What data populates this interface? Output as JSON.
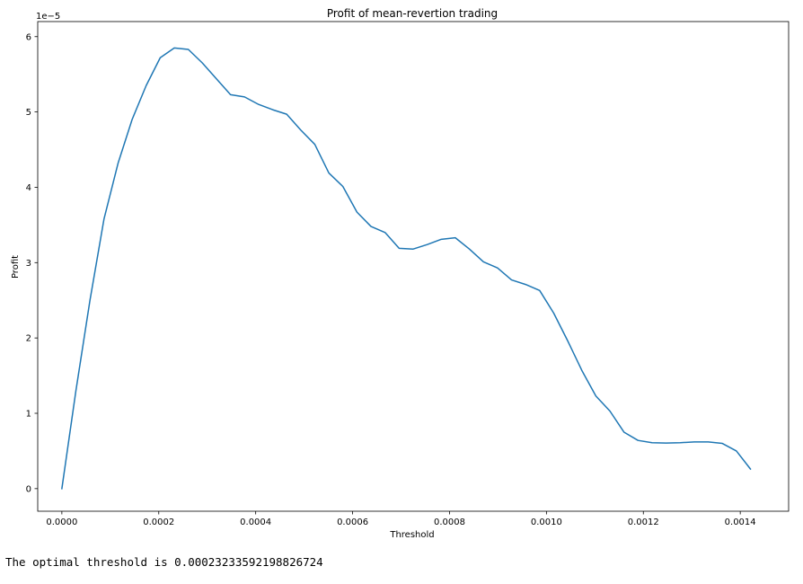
{
  "chart_data": {
    "type": "line",
    "title": "Profit of mean-revertion trading",
    "xlabel": "Threshold",
    "ylabel": "Profit",
    "y_offset_label": "1e−5",
    "y_multiplier": 1e-05,
    "xlim": [
      -4.98e-05,
      0.0014998
    ],
    "ylim": [
      -0.3,
      6.2
    ],
    "x_ticks": [
      0.0,
      0.0002,
      0.0004,
      0.0006,
      0.0008,
      0.001,
      0.0012,
      0.0014
    ],
    "x_tick_labels": [
      "0.0000",
      "0.0002",
      "0.0004",
      "0.0006",
      "0.0008",
      "0.0010",
      "0.0012",
      "0.0014"
    ],
    "y_ticks": [
      0,
      1,
      2,
      3,
      4,
      5,
      6
    ],
    "y_tick_labels": [
      "0",
      "1",
      "2",
      "3",
      "4",
      "5",
      "6"
    ],
    "grid": false,
    "line_color": "#1f77b4",
    "series": [
      {
        "x": [
          0.0,
          2.9e-05,
          5.8e-05,
          8.7e-05,
          0.000116,
          0.000145,
          0.000174,
          0.000203,
          0.000232,
          0.000261,
          0.00029,
          0.000319,
          0.000348,
          0.000377,
          0.000406,
          0.000435,
          0.000464,
          0.000493,
          0.000522,
          0.000551,
          0.00058,
          0.000609,
          0.000638,
          0.000667,
          0.000696,
          0.000725,
          0.000754,
          0.000783,
          0.000812,
          0.000841,
          0.00087,
          0.000899,
          0.000928,
          0.000957,
          0.000986,
          0.001015,
          0.001044,
          0.001073,
          0.001102,
          0.001131,
          0.00116,
          0.001189,
          0.001218,
          0.001247,
          0.001276,
          0.001305,
          0.001334,
          0.001363,
          0.001392,
          0.001421
        ],
        "y": [
          0.0,
          1.3,
          2.5,
          3.58,
          4.32,
          4.9,
          5.35,
          5.72,
          5.85,
          5.83,
          5.65,
          5.44,
          5.23,
          5.2,
          5.1,
          5.03,
          4.97,
          4.76,
          4.57,
          4.19,
          4.01,
          3.67,
          3.48,
          3.4,
          3.19,
          3.18,
          3.24,
          3.31,
          3.33,
          3.18,
          3.01,
          2.93,
          2.77,
          2.71,
          2.63,
          2.33,
          1.96,
          1.57,
          1.23,
          1.03,
          0.75,
          0.64,
          0.61,
          0.605,
          0.61,
          0.62,
          0.62,
          0.6,
          0.5,
          0.26
        ]
      }
    ]
  },
  "output": {
    "text": "The optimal threshold is 0.00023233592198826724"
  }
}
